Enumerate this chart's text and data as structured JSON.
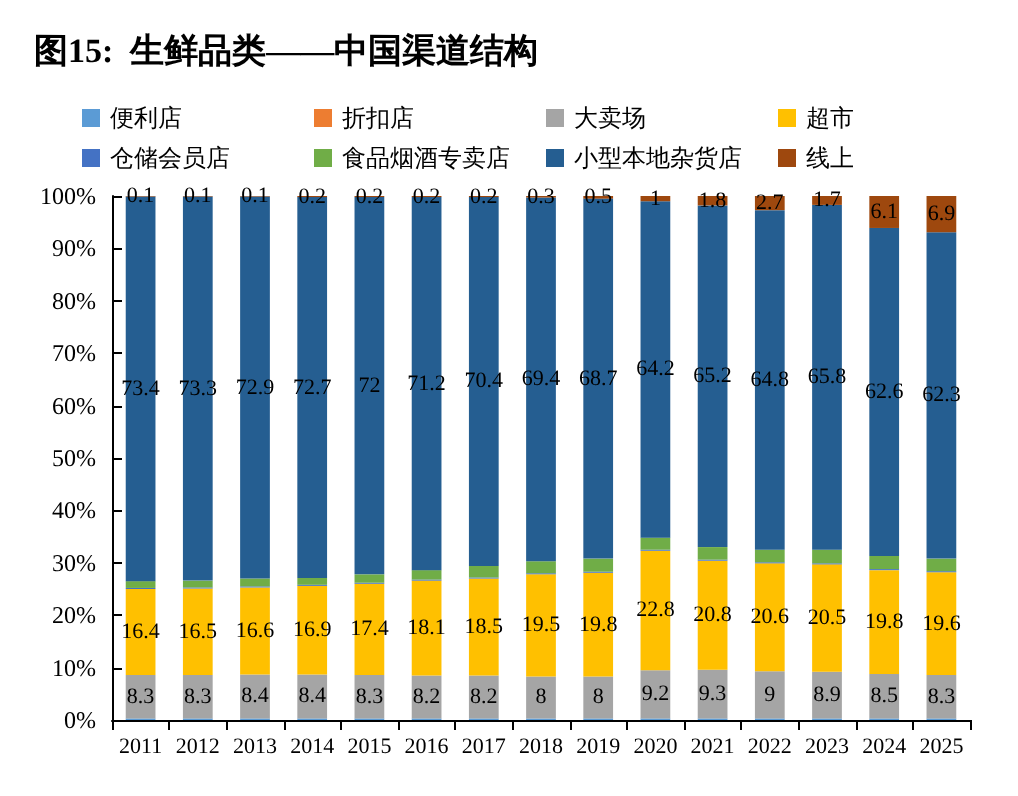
{
  "chart_data": {
    "type": "bar",
    "title": "图15:  生鲜品类——中国渠道结构",
    "stacked": true,
    "legend": "top",
    "grid": false,
    "categories": [
      "2011",
      "2012",
      "2013",
      "2014",
      "2015",
      "2016",
      "2017",
      "2018",
      "2019",
      "2020",
      "2021",
      "2022",
      "2023",
      "2024",
      "2025"
    ],
    "ylim": [
      0,
      100
    ],
    "yticks": [
      {
        "value": 0,
        "label": "0%"
      },
      {
        "value": 10,
        "label": "10%"
      },
      {
        "value": 20,
        "label": "20%"
      },
      {
        "value": 30,
        "label": "30%"
      },
      {
        "value": 40,
        "label": "40%"
      },
      {
        "value": 50,
        "label": "50%"
      },
      {
        "value": 60,
        "label": "60%"
      },
      {
        "value": 70,
        "label": "70%"
      },
      {
        "value": 80,
        "label": "80%"
      },
      {
        "value": 90,
        "label": "90%"
      },
      {
        "value": 100,
        "label": "100%"
      }
    ],
    "series": [
      {
        "name": "便利店",
        "color": "#5b9bd5",
        "values": [
          0.3,
          0.3,
          0.3,
          0.3,
          0.3,
          0.3,
          0.3,
          0.3,
          0.3,
          0.3,
          0.3,
          0.3,
          0.3,
          0.3,
          0.3
        ]
      },
      {
        "name": "折扣店",
        "color": "#ed7d31",
        "values": [
          0,
          0,
          0,
          0,
          0,
          0,
          0,
          0,
          0,
          0,
          0,
          0,
          0,
          0,
          0
        ]
      },
      {
        "name": "大卖场",
        "color": "#a5a5a5",
        "values": [
          8.3,
          8.3,
          8.4,
          8.4,
          8.3,
          8.2,
          8.2,
          8,
          8,
          9.2,
          9.3,
          9,
          8.9,
          8.5,
          8.3
        ],
        "value_labels": [
          "8.3",
          "8.3",
          "8.4",
          "8.4",
          "8.3",
          "8.2",
          "8.2",
          "8",
          "8",
          "9.2",
          "9.3",
          "9",
          "8.9",
          "8.5",
          "8.3"
        ]
      },
      {
        "name": "超市",
        "color": "#ffc000",
        "values": [
          16.4,
          16.5,
          16.6,
          16.9,
          17.4,
          18.1,
          18.5,
          19.5,
          19.8,
          22.8,
          20.8,
          20.6,
          20.5,
          19.8,
          19.6
        ],
        "value_labels": [
          "16.4",
          "16.5",
          "16.6",
          "16.9",
          "17.4",
          "18.1",
          "18.5",
          "19.5",
          "19.8",
          "22.8",
          "20.8",
          "20.6",
          "20.5",
          "19.8",
          "19.6"
        ]
      },
      {
        "name": "仓储会员店",
        "color": "#4472c4",
        "values": [
          0.2,
          0.2,
          0.2,
          0.2,
          0.2,
          0.2,
          0.2,
          0.2,
          0.2,
          0.2,
          0.2,
          0.2,
          0.2,
          0.2,
          0.2
        ]
      },
      {
        "name": "食品烟酒专卖店",
        "color": "#70ad47",
        "values": [
          1.3,
          1.3,
          1.5,
          1.3,
          1.6,
          1.8,
          2.2,
          2.3,
          2.5,
          2.3,
          2.4,
          2.4,
          2.6,
          2.5,
          2.4
        ]
      },
      {
        "name": "小型本地杂货店",
        "color": "#255e91",
        "values": [
          73.4,
          73.3,
          72.9,
          72.7,
          72,
          71.2,
          70.4,
          69.4,
          68.7,
          64.2,
          65.2,
          64.8,
          65.8,
          62.6,
          62.3
        ],
        "value_labels": [
          "73.4",
          "73.3",
          "72.9",
          "72.7",
          "72",
          "71.2",
          "70.4",
          "69.4",
          "68.7",
          "64.2",
          "65.2",
          "64.8",
          "65.8",
          "62.6",
          "62.3"
        ]
      },
      {
        "name": "线上",
        "color": "#9e480e",
        "values": [
          0.1,
          0.1,
          0.1,
          0.2,
          0.2,
          0.2,
          0.2,
          0.3,
          0.5,
          1,
          1.8,
          2.7,
          1.7,
          6.1,
          6.9
        ],
        "value_labels": [
          "0.1",
          "0.1",
          "0.1",
          "0.2",
          "0.2",
          "0.2",
          "0.2",
          "0.3",
          "0.5",
          "1",
          "1.8",
          "2.7",
          "1.7",
          "6.1",
          "6.9"
        ]
      }
    ]
  }
}
